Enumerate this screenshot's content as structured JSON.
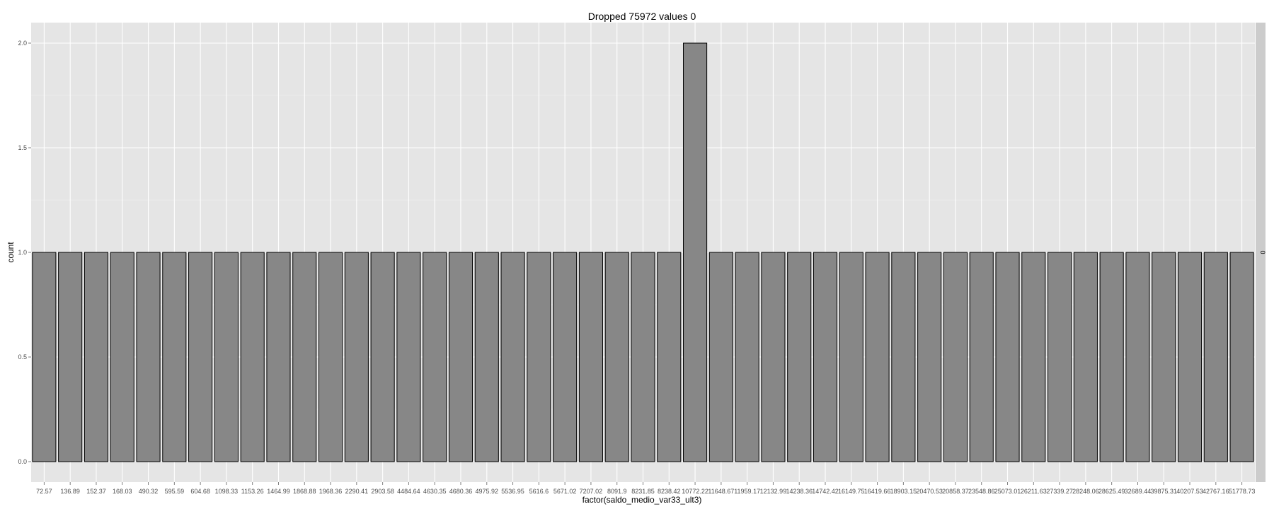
{
  "chart_data": {
    "type": "bar",
    "title": "Dropped 75972 values 0",
    "xlabel": "factor(saldo_medio_var33_ult3)",
    "ylabel": "count",
    "ylim": [
      0,
      2.1
    ],
    "yticks": [
      "0.0",
      "0.5",
      "1.0",
      "1.5",
      "2.0"
    ],
    "facet_label": "0",
    "grid": true,
    "categories": [
      "72.57",
      "136.89",
      "152.37",
      "168.03",
      "490.32",
      "595.59",
      "604.68",
      "1098.33",
      "1153.26",
      "1464.99",
      "1868.88",
      "1968.36",
      "2290.41",
      "2903.58",
      "4484.64",
      "4630.35",
      "4680.36",
      "4975.92",
      "5536.95",
      "5616.6",
      "5671.02",
      "7207.02",
      "8091.9",
      "8231.85",
      "8238.42",
      "10772.22",
      "11648.67",
      "11959.17",
      "12132.99",
      "14238.36",
      "14742.42",
      "16149.75",
      "16419.66",
      "18903.15",
      "20470.53",
      "20858.37",
      "23548.86",
      "25073.01",
      "26211.63",
      "27339.27",
      "28248.06",
      "28625.49",
      "32689.44",
      "39875.31",
      "40207.53",
      "42767.16",
      "51778.73"
    ],
    "values": [
      1,
      1,
      1,
      1,
      1,
      1,
      1,
      1,
      1,
      1,
      1,
      1,
      1,
      1,
      1,
      1,
      1,
      1,
      1,
      1,
      1,
      1,
      1,
      1,
      1,
      2,
      1,
      1,
      1,
      1,
      1,
      1,
      1,
      1,
      1,
      1,
      1,
      1,
      1,
      1,
      1,
      1,
      1,
      1,
      1,
      1,
      1
    ]
  },
  "colors": {
    "panel_bg": "#e5e5e5",
    "grid": "#ffffff",
    "bar_fill": "#878787",
    "bar_stroke": "#000000",
    "strip_bg": "#cccccc"
  }
}
